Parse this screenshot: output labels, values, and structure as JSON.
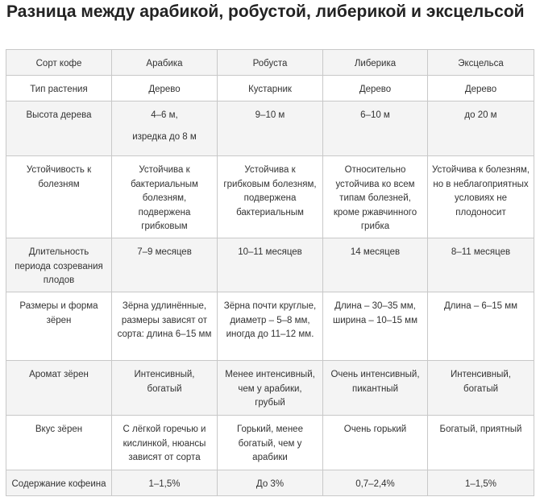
{
  "title": "Разница между арабикой, робустой, либерикой и эксцельсой",
  "table": {
    "header": [
      "Сорт кофе",
      "Арабика",
      "Робуста",
      "Либерика",
      "Эксцельса"
    ],
    "rows": [
      {
        "label": "Тип растения",
        "cells": [
          "Дерево",
          "Кустарник",
          "Дерево",
          "Дерево"
        ]
      },
      {
        "label": "Высота дерева",
        "cells": [
          "4–6 м,",
          "9–10 м",
          "6–10 м",
          "до 20 м"
        ],
        "extra": "изредка до 8 м"
      },
      {
        "label": "Устойчивость к болезням",
        "cells": [
          "Устойчива к бактериальным болезням, подвержена грибковым",
          "Устойчива к грибковым болезням, подвержена бактериальным",
          "Относительно устойчива ко всем типам болезней, кроме ржавчинного грибка",
          "Устойчива к болезням, но в неблагоприятных условиях не плодоносит"
        ]
      },
      {
        "label": "Длительность периода созревания плодов",
        "cells": [
          "7–9 месяцев",
          "10–11 месяцев",
          "14 месяцев",
          "8–11 месяцев"
        ]
      },
      {
        "label": "Размеры и форма зёрен",
        "cells": [
          "Зёрна удлинённые, размеры зависят от сорта: длина 6–15 мм",
          "Зёрна почти круглые, диаметр – 5–8 мм, иногда до 11–12 мм.",
          "Длина – 30–35 мм, ширина – 10–15 мм",
          "Длина – 6–15 мм"
        ]
      },
      {
        "label": "Аромат зёрен",
        "cells": [
          "Интенсивный, богатый",
          "Менее интенсивный, чем у арабики, грубый",
          "Очень интенсивный, пикантный",
          "Интенсивный, богатый"
        ]
      },
      {
        "label": "Вкус зёрен",
        "cells": [
          "С лёгкой горечью и кислинкой, нюансы зависят от сорта",
          "Горький, менее богатый, чем у арабики",
          "Очень горький",
          "Богатый, приятный"
        ]
      },
      {
        "label": "Содержание кофеина",
        "cells": [
          "1–1,5%",
          "До 3%",
          "0,7–2,4%",
          "1–1,5%"
        ]
      }
    ]
  }
}
